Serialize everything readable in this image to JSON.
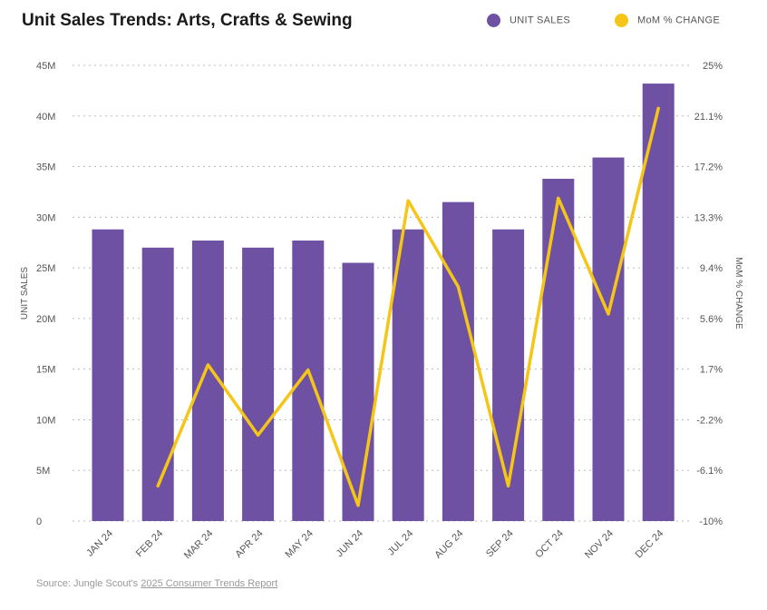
{
  "title": "Unit Sales Trends: Arts, Crafts & Sewing",
  "legend": [
    {
      "label": "UNIT SALES",
      "color": "#6e51a3"
    },
    {
      "label": "MoM % CHANGE",
      "color": "#f5c518"
    }
  ],
  "source": {
    "prefix": "Source: Jungle Scout's ",
    "link": "2025 Consumer Trends Report"
  },
  "chart_data": {
    "type": "bar",
    "categories": [
      "JAN 24",
      "FEB 24",
      "MAR 24",
      "APR 24",
      "MAY 24",
      "JUN 24",
      "JUL 24",
      "AUG 24",
      "SEP 24",
      "OCT 24",
      "NOV 24",
      "DEC 24"
    ],
    "series": [
      {
        "name": "UNIT SALES",
        "type": "bar",
        "axis": "left",
        "color": "#6e51a3",
        "values": [
          28.8,
          27.0,
          27.7,
          27.0,
          27.7,
          25.5,
          28.8,
          31.5,
          28.8,
          33.8,
          35.9,
          43.2
        ]
      },
      {
        "name": "MoM % CHANGE",
        "type": "line",
        "axis": "right",
        "color": "#f5c518",
        "values": [
          null,
          -7.3,
          2.0,
          -3.4,
          1.6,
          -8.8,
          14.6,
          8.0,
          -7.3,
          14.8,
          5.9,
          21.7
        ]
      }
    ],
    "ylabel_left": "UNIT SALES",
    "ylabel_right": "MoM % CHANGE",
    "ylim_left": [
      0,
      45
    ],
    "ylim_right": [
      -10,
      25
    ],
    "yticks_left": [
      "0",
      "5M",
      "10M",
      "15M",
      "20M",
      "25M",
      "30M",
      "35M",
      "40M",
      "45M"
    ],
    "yticks_right": [
      "-10%",
      "-6.1%",
      "-2.2%",
      "1.7%",
      "5.6%",
      "9.4%",
      "13.3%",
      "17.2%",
      "21.1%",
      "25%"
    ],
    "grid": true,
    "legend_position": "top-right"
  }
}
